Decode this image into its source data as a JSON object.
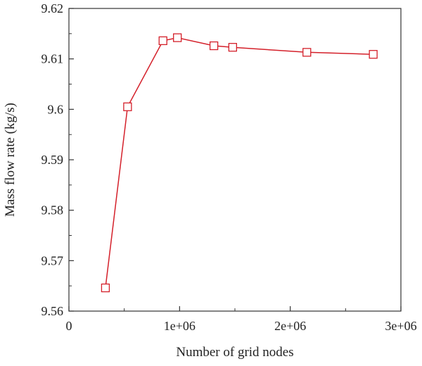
{
  "chart_data": {
    "type": "line",
    "title": "",
    "xlabel": "Number of grid nodes",
    "ylabel": "Mass flow rate (kg/s)",
    "xlim": [
      0,
      3000000
    ],
    "ylim": [
      9.56,
      9.62
    ],
    "x_ticks": [
      0,
      1000000,
      2000000,
      3000000
    ],
    "x_tick_labels": [
      "0",
      "1e+06",
      "2e+06",
      "3e+06"
    ],
    "y_ticks": [
      9.56,
      9.57,
      9.58,
      9.59,
      9.6,
      9.61,
      9.62
    ],
    "y_tick_labels": [
      "9.56",
      "9.57",
      "9.58",
      "9.59",
      "9.6",
      "9.61",
      "9.62"
    ],
    "grid": false,
    "legend": "none",
    "series": [
      {
        "color": "#d4202a",
        "marker": "open-square",
        "x": [
          330000,
          530000,
          850000,
          980000,
          1310000,
          1480000,
          2150000,
          2750000
        ],
        "y": [
          9.5646,
          9.6005,
          9.6136,
          9.6142,
          9.6126,
          9.6123,
          9.6113,
          9.6109
        ]
      }
    ]
  }
}
